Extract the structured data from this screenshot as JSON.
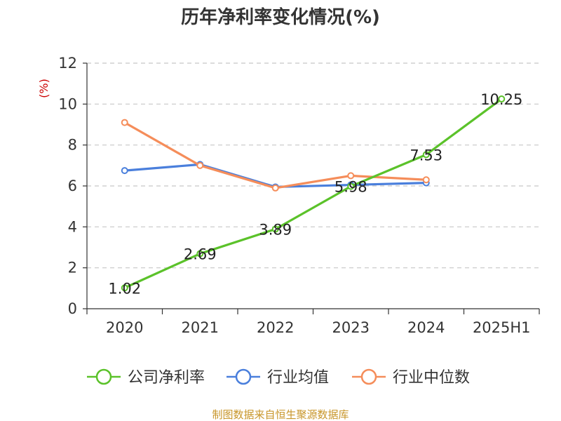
{
  "chart_data": {
    "type": "line",
    "title": "历年净利率变化情况(%)",
    "ylabel": "(%)",
    "xlabel": "",
    "categories": [
      "2020",
      "2021",
      "2022",
      "2023",
      "2024",
      "2025H1"
    ],
    "ylim": [
      0,
      12
    ],
    "yticks": [
      0,
      2,
      4,
      6,
      8,
      10,
      12
    ],
    "grid": true,
    "legend_position": "bottom",
    "series": [
      {
        "name": "公司净利率",
        "color": "#5bc22a",
        "values": [
          1.02,
          2.69,
          3.89,
          5.98,
          7.53,
          10.25
        ],
        "labels": [
          "1.02",
          "2.69",
          "3.89",
          "5.98",
          "7.53",
          "10.25"
        ]
      },
      {
        "name": "行业均值",
        "color": "#4a7fdc",
        "values": [
          6.75,
          7.05,
          5.95,
          6.05,
          6.15,
          null
        ]
      },
      {
        "name": "行业中位数",
        "color": "#f58d5a",
        "values": [
          9.1,
          7.0,
          5.9,
          6.5,
          6.3,
          null
        ]
      }
    ],
    "source": "制图数据来自恒生聚源数据库"
  }
}
